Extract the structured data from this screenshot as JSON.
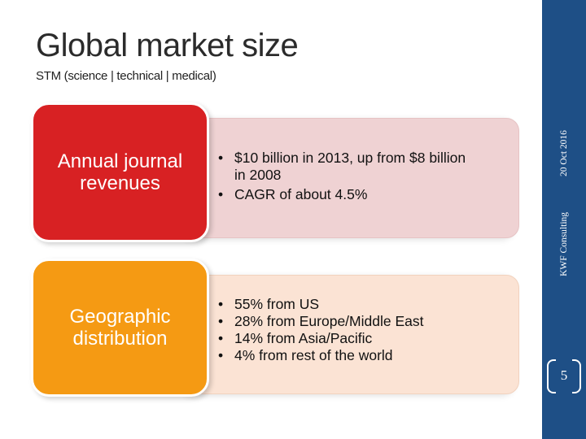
{
  "title": "Global market size",
  "subtitle": "STM (science | technical | medical)",
  "sidebar": {
    "company": "KWF Consulting",
    "date": "20 Oct 2016",
    "page_number": "5"
  },
  "sections": [
    {
      "label": "Annual journal revenues",
      "color": "#d82123",
      "bullets": [
        "$10 billion in 2013, up from $8 billion in 2008",
        "CAGR of about 4.5%"
      ]
    },
    {
      "label": "Geographic distribution",
      "color": "#f59a13",
      "bullets": [
        "55% from US",
        "28% from Europe/Middle East",
        "14% from Asia/Pacific",
        "4% from rest of the world"
      ]
    }
  ]
}
